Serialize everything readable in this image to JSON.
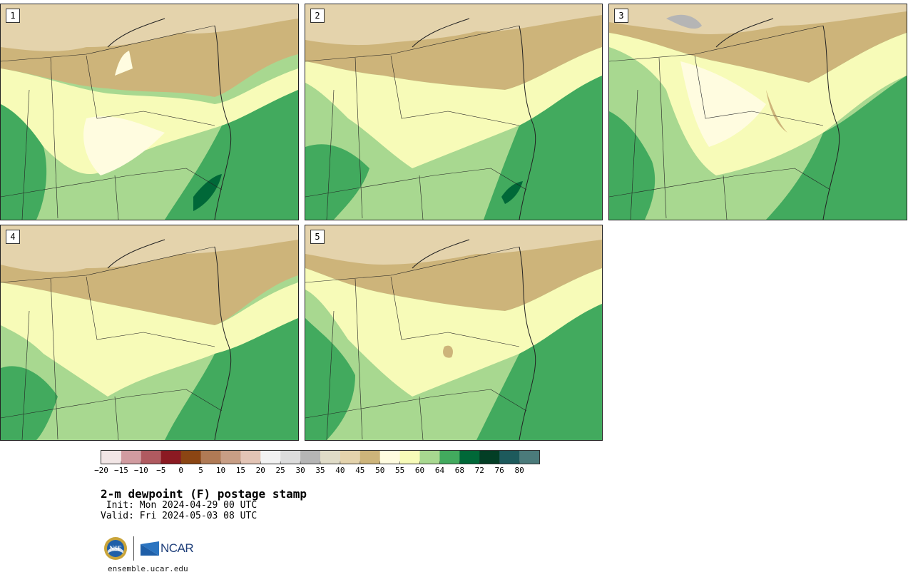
{
  "panels": [
    {
      "label": "1"
    },
    {
      "label": "2"
    },
    {
      "label": "3"
    },
    {
      "label": "4"
    },
    {
      "label": "5"
    }
  ],
  "colorbar": {
    "colors": [
      "#f2e6e6",
      "#d19ba0",
      "#b05a60",
      "#8b1a22",
      "#8b4513",
      "#b07a55",
      "#c89e85",
      "#e3c4b5",
      "#f2f2f2",
      "#dcdcdc",
      "#b5b5b5",
      "#e0dcc8",
      "#e4d3ac",
      "#cdb47a",
      "#fffce0",
      "#f7fbb8",
      "#a8d890",
      "#42aa5e",
      "#006838",
      "#033e25",
      "#1d5a5c",
      "#4b7b7b"
    ],
    "tick_labels": [
      "−20",
      "−15",
      "−10",
      "−5",
      "0",
      "5",
      "10",
      "15",
      "20",
      "25",
      "30",
      "35",
      "40",
      "45",
      "50",
      "55",
      "60",
      "64",
      "68",
      "72",
      "76",
      "80"
    ]
  },
  "title": "2-m dewpoint (F) postage stamp",
  "init": " Init: Mon 2024-04-29 00 UTC",
  "valid": "Valid: Fri 2024-05-03 08 UTC",
  "logos": {
    "nsf": "NSF",
    "ncar": "NCAR"
  },
  "site": "ensemble.ucar.edu"
}
